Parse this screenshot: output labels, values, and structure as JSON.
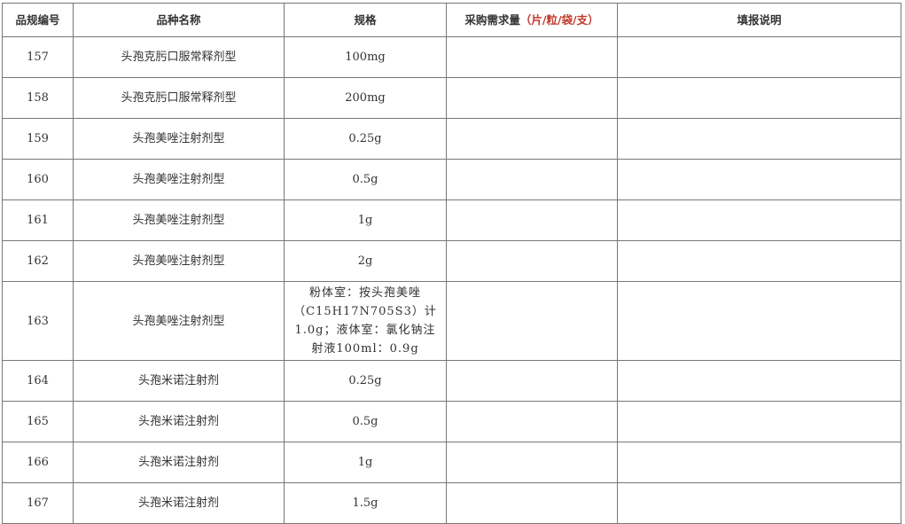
{
  "headers": {
    "code": "品规编号",
    "name": "品种名称",
    "spec": "规格",
    "qty": "采购需求量",
    "qty_unit": "（片/粒/袋/支）",
    "note": "填报说明"
  },
  "unit_color": "#c0392b",
  "rows": [
    {
      "code": "157",
      "name": "头孢克肟口服常释剂型",
      "spec": "100mg"
    },
    {
      "code": "158",
      "name": "头孢克肟口服常释剂型",
      "spec": "200mg"
    },
    {
      "code": "159",
      "name": "头孢美唑注射剂型",
      "spec": "0.25g"
    },
    {
      "code": "160",
      "name": "头孢美唑注射剂型",
      "spec": "0.5g"
    },
    {
      "code": "161",
      "name": "头孢美唑注射剂型",
      "spec": "1g"
    },
    {
      "code": "162",
      "name": "头孢美唑注射剂型",
      "spec": "2g"
    },
    {
      "code": "163",
      "name": "头孢美唑注射剂型",
      "spec": "粉体室：按头孢美唑（C15H17N705S3）计1.0g；液体室：氯化钠注射液100ml：0.9g"
    },
    {
      "code": "164",
      "name": "头孢米诺注射剂",
      "spec": "0.25g"
    },
    {
      "code": "165",
      "name": "头孢米诺注射剂",
      "spec": "0.5g"
    },
    {
      "code": "166",
      "name": "头孢米诺注射剂",
      "spec": "1g"
    },
    {
      "code": "167",
      "name": "头孢米诺注射剂",
      "spec": "1.5g"
    }
  ]
}
